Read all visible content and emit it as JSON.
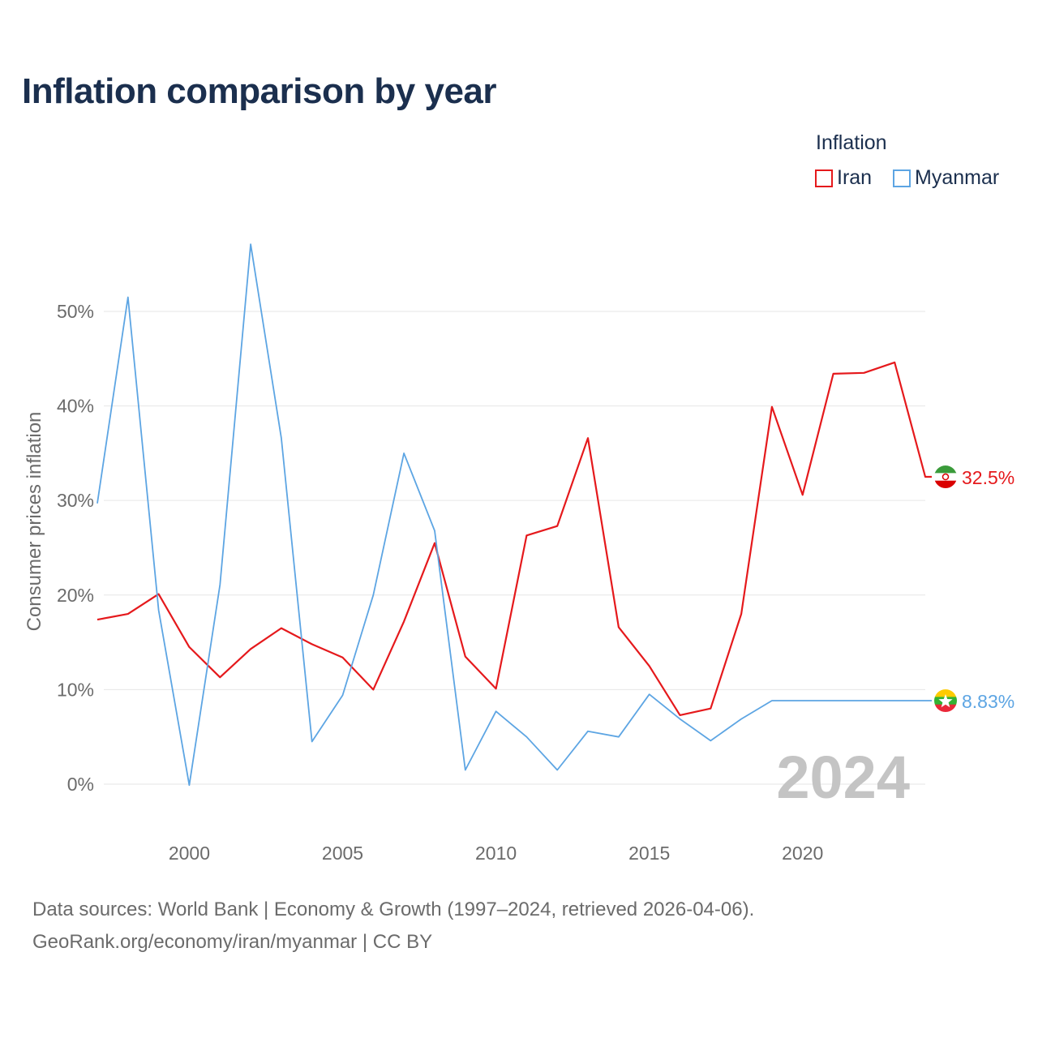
{
  "title": "Inflation comparison by year",
  "legend": {
    "title": "Inflation",
    "items": [
      {
        "label": "Iran",
        "color": "#e5191c"
      },
      {
        "label": "Myanmar",
        "color": "#5da5e3"
      }
    ]
  },
  "footer": {
    "line1": "Data sources: World Bank | Economy & Growth (1997–2024, retrieved 2026-04-06).",
    "line2": "GeoRank.org/economy/iran/myanmar | CC BY"
  },
  "chart_data": {
    "type": "line",
    "title": "Inflation comparison by year",
    "xlabel": "",
    "ylabel": "Consumer prices inflation",
    "xlim": [
      1997,
      2024
    ],
    "ylim": [
      -3,
      59
    ],
    "grid": true,
    "legend_position": "top-right",
    "x_ticks": [
      2000,
      2005,
      2010,
      2015,
      2020
    ],
    "y_ticks": [
      0,
      10,
      20,
      30,
      40,
      50
    ],
    "y_tick_labels": [
      "0%",
      "10%",
      "20%",
      "30%",
      "40%",
      "50%"
    ],
    "year_label": "2024",
    "x": [
      1997,
      1998,
      1999,
      2000,
      2001,
      2002,
      2003,
      2004,
      2005,
      2006,
      2007,
      2008,
      2009,
      2010,
      2011,
      2012,
      2013,
      2014,
      2015,
      2016,
      2017,
      2018,
      2019,
      2020,
      2021,
      2022,
      2023,
      2024
    ],
    "series": [
      {
        "name": "Iran",
        "color": "#e5191c",
        "end_label": "32.5%",
        "values": [
          17.4,
          18.0,
          20.1,
          14.5,
          11.3,
          14.3,
          16.5,
          14.8,
          13.4,
          10.0,
          17.2,
          25.5,
          13.5,
          10.1,
          26.3,
          27.3,
          36.6,
          16.6,
          12.5,
          7.3,
          8.0,
          18.0,
          39.9,
          30.6,
          43.4,
          43.5,
          44.6,
          32.5
        ]
      },
      {
        "name": "Myanmar",
        "color": "#5da5e3",
        "end_label": "8.83%",
        "values": [
          29.7,
          51.5,
          18.4,
          -0.1,
          21.1,
          57.1,
          36.6,
          4.5,
          9.4,
          20.0,
          35.0,
          26.8,
          1.5,
          7.7,
          5.0,
          1.5,
          5.6,
          5.0,
          9.5,
          6.9,
          4.6,
          6.9,
          8.83,
          8.83,
          8.83,
          8.83,
          8.83,
          8.83
        ]
      }
    ]
  }
}
